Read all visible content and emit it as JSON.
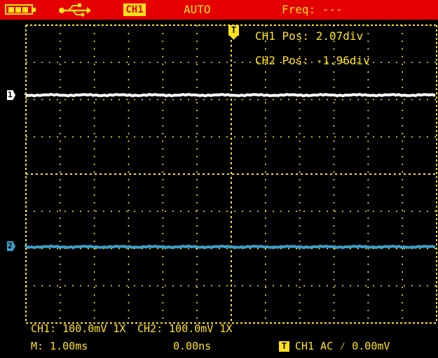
{
  "status_bar": {
    "channel_badge": "CH1",
    "mode": "AUTO",
    "frequency": "Freq: ---",
    "battery_level": 1.0
  },
  "overlay": {
    "ch1_position": "CH1 Pos: 2.07div",
    "ch2_position": "CH2 Pos: -1.96div",
    "trigger_marker": "T"
  },
  "markers": {
    "ch1": "1",
    "ch2": "2"
  },
  "footer": {
    "ch1_scale": "CH1: 100.0mV 1X",
    "ch2_scale": "CH2: 100.0mV 1X",
    "timebase": "M: 1.00ms",
    "time_offset": "0.00ns",
    "trigger_icon": "T",
    "trigger_info": "CH1 AC ⁄ 0.00mV"
  },
  "colors": {
    "grid": "#ffe31a",
    "ch1_trace": "#ffffff",
    "ch2_trace": "#3aa0c8",
    "status_bg": "#e50000"
  },
  "icons": {
    "battery": "battery-icon",
    "usb": "usb-icon"
  }
}
